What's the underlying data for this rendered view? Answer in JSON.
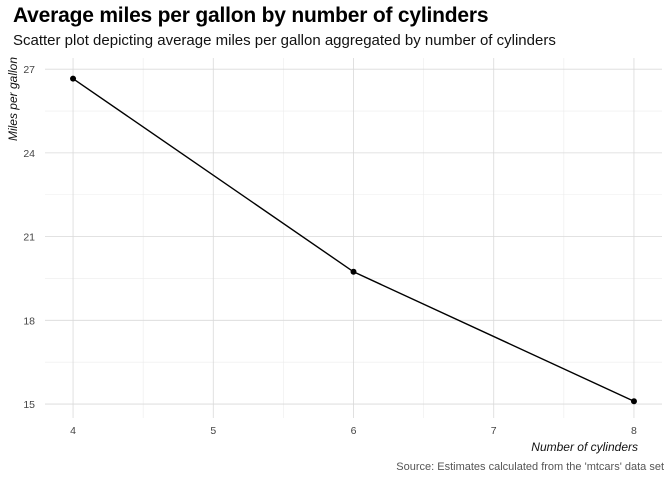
{
  "title": "Average miles per gallon by number of cylinders",
  "subtitle": "Scatter plot depicting average miles per gallon aggregated by number of cylinders",
  "caption": "Source: Estimates calculated from the 'mtcars' data set",
  "chart_data": {
    "type": "line",
    "x": [
      4,
      6,
      8
    ],
    "y": [
      26.66,
      19.74,
      15.1
    ],
    "xlabel": "Number of cylinders",
    "ylabel": "Miles per gallon",
    "xlim": [
      3.8,
      8.2
    ],
    "ylim": [
      14.5,
      27.4
    ],
    "xticks": [
      4,
      5,
      6,
      7,
      8
    ],
    "yticks": [
      15,
      18,
      21,
      24,
      27
    ],
    "grid": true,
    "line_color": "#000000",
    "grid_color": "#d9d9d9"
  }
}
